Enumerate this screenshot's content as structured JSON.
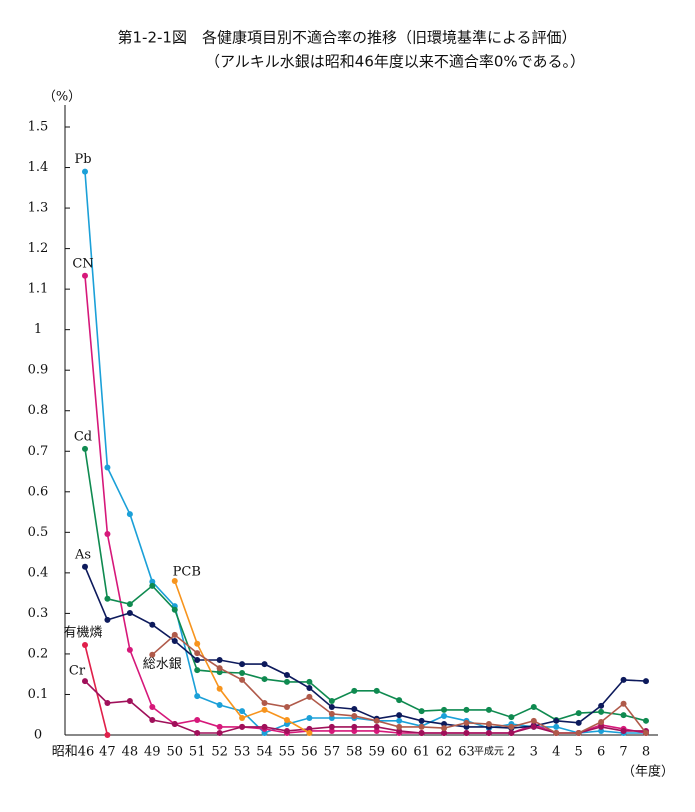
{
  "chart_data": {
    "type": "line",
    "title": "第1-2-1図　各健康項目別不適合率の推移（旧環境基準による評価）",
    "subtitle": "（アルキル水銀は昭和46年度以来不適合率0%である。）",
    "y_label": "（%）",
    "x_label": "（年度）",
    "categories": [
      "昭和46",
      "47",
      "48",
      "49",
      "50",
      "51",
      "52",
      "53",
      "54",
      "55",
      "56",
      "57",
      "58",
      "59",
      "60",
      "61",
      "62",
      "63",
      "平成元",
      "2",
      "3",
      "4",
      "5",
      "6",
      "7",
      "8"
    ],
    "ylim": [
      0,
      1.5
    ],
    "yticks": [
      0,
      0.1,
      0.2,
      0.3,
      0.4,
      0.5,
      0.6,
      0.7,
      0.8,
      0.9,
      1,
      {
        "value": 1.1,
        "label": "1.1"
      },
      1.2,
      1.3,
      1.4,
      1.5
    ],
    "series": [
      {
        "name": "Pb",
        "color": "#1ba0d8",
        "values": [
          1.39,
          0.66,
          0.545,
          0.378,
          0.318,
          0.096,
          0.074,
          0.059,
          0.005,
          0.027,
          0.042,
          0.042,
          0.042,
          0.035,
          0.035,
          0.022,
          0.047,
          0.035,
          0.017,
          0.027,
          0.02,
          0.02,
          0.005,
          0.01,
          0.005,
          0.005
        ]
      },
      {
        "name": "CN",
        "color": "#d6187a",
        "values": [
          1.133,
          0.496,
          0.21,
          0.069,
          0.027,
          0.037,
          0.02,
          0.02,
          0.015,
          0.005,
          0.01,
          0.01,
          0.01,
          0.01,
          0.005,
          0.005,
          0.005,
          0.005,
          0.005,
          0.005,
          0.025,
          0.005,
          0.005,
          0.025,
          0.015,
          0.005
        ]
      },
      {
        "name": "Cd",
        "color": "#0f8a50",
        "values": [
          0.706,
          0.336,
          0.323,
          0.368,
          0.309,
          0.16,
          0.155,
          0.153,
          0.138,
          0.131,
          0.131,
          0.084,
          0.109,
          0.109,
          0.086,
          0.059,
          0.062,
          0.062,
          0.062,
          0.044,
          0.069,
          0.037,
          0.054,
          0.057,
          0.049,
          0.035
        ]
      },
      {
        "name": "As",
        "color": "#0d1a5c",
        "values": [
          0.415,
          0.284,
          0.301,
          0.272,
          0.232,
          0.185,
          0.185,
          0.175,
          0.175,
          0.148,
          0.116,
          0.069,
          0.064,
          0.04,
          0.049,
          0.035,
          0.027,
          0.02,
          0.02,
          0.017,
          0.022,
          0.035,
          0.03,
          0.072,
          0.136,
          0.133
        ]
      },
      {
        "name": "有機燐",
        "color": "#e0204a",
        "values": [
          0.222,
          0,
          null,
          null,
          null,
          null,
          null,
          null,
          null,
          null,
          null,
          null,
          null,
          null,
          null,
          null,
          null,
          null,
          null,
          null,
          null,
          null,
          null,
          null,
          null,
          null
        ]
      },
      {
        "name": "Cr",
        "color": "#a0105a",
        "values": [
          0.133,
          0.079,
          0.084,
          0.037,
          0.027,
          0.005,
          0.005,
          0.02,
          0.02,
          0.01,
          0.015,
          0.02,
          0.02,
          0.02,
          0.01,
          0.005,
          0.005,
          0.005,
          0.005,
          0.005,
          0.02,
          0.005,
          0.005,
          0.02,
          0.01,
          0.01
        ]
      },
      {
        "name": "PCB",
        "color": "#f7941d",
        "values": [
          null,
          null,
          null,
          null,
          0.38,
          0.225,
          0.114,
          0.042,
          0.062,
          0.037,
          0.005,
          null,
          null,
          null,
          null,
          null,
          null,
          null,
          null,
          null,
          null,
          null,
          null,
          null,
          null,
          null
        ]
      },
      {
        "name": "総水銀",
        "color": "#b05a4a",
        "values": [
          null,
          null,
          null,
          0.198,
          0.247,
          0.202,
          0.165,
          0.136,
          0.079,
          0.069,
          0.094,
          0.052,
          0.047,
          0.035,
          0.02,
          0.02,
          0.017,
          0.03,
          0.027,
          0.02,
          0.035,
          0.005,
          0.005,
          0.032,
          0.077,
          0.005
        ]
      }
    ]
  }
}
